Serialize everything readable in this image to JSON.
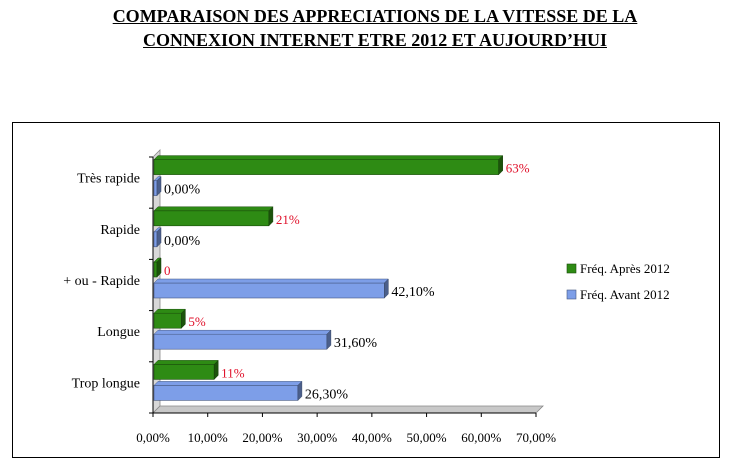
{
  "title": {
    "line1": "COMPARAISON DES APPRECIATIONS DE LA VITESSE DE LA",
    "line2": "CONNEXION INTERNET ETRE 2012 ET AUJOURD’HUI"
  },
  "chart_data": {
    "type": "bar",
    "orientation": "horizontal",
    "categories": [
      "Très rapide",
      "Rapide",
      "+ ou - Rapide",
      "Longue",
      "Trop longue"
    ],
    "series": [
      {
        "name": "Fréq. Après 2012",
        "values": [
          63,
          21,
          0,
          5,
          11
        ],
        "labels": [
          "63%",
          "21%",
          "0",
          "5%",
          "11%"
        ],
        "color": "#2e8b14",
        "label_color": "#e0102a"
      },
      {
        "name": "Fréq. Avant 2012",
        "values": [
          0,
          0,
          42.1,
          31.6,
          26.3
        ],
        "labels": [
          "0,00%",
          "0,00%",
          "42,10%",
          "31,60%",
          "26,30%"
        ],
        "color": "#7d9ee8",
        "label_color": "#000000"
      }
    ],
    "xlim": [
      0,
      70
    ],
    "ticks": [
      "0,00%",
      "10,00%",
      "20,00%",
      "30,00%",
      "40,00%",
      "50,00%",
      "60,00%",
      "70,00%"
    ],
    "legend": "right",
    "grid": false
  }
}
